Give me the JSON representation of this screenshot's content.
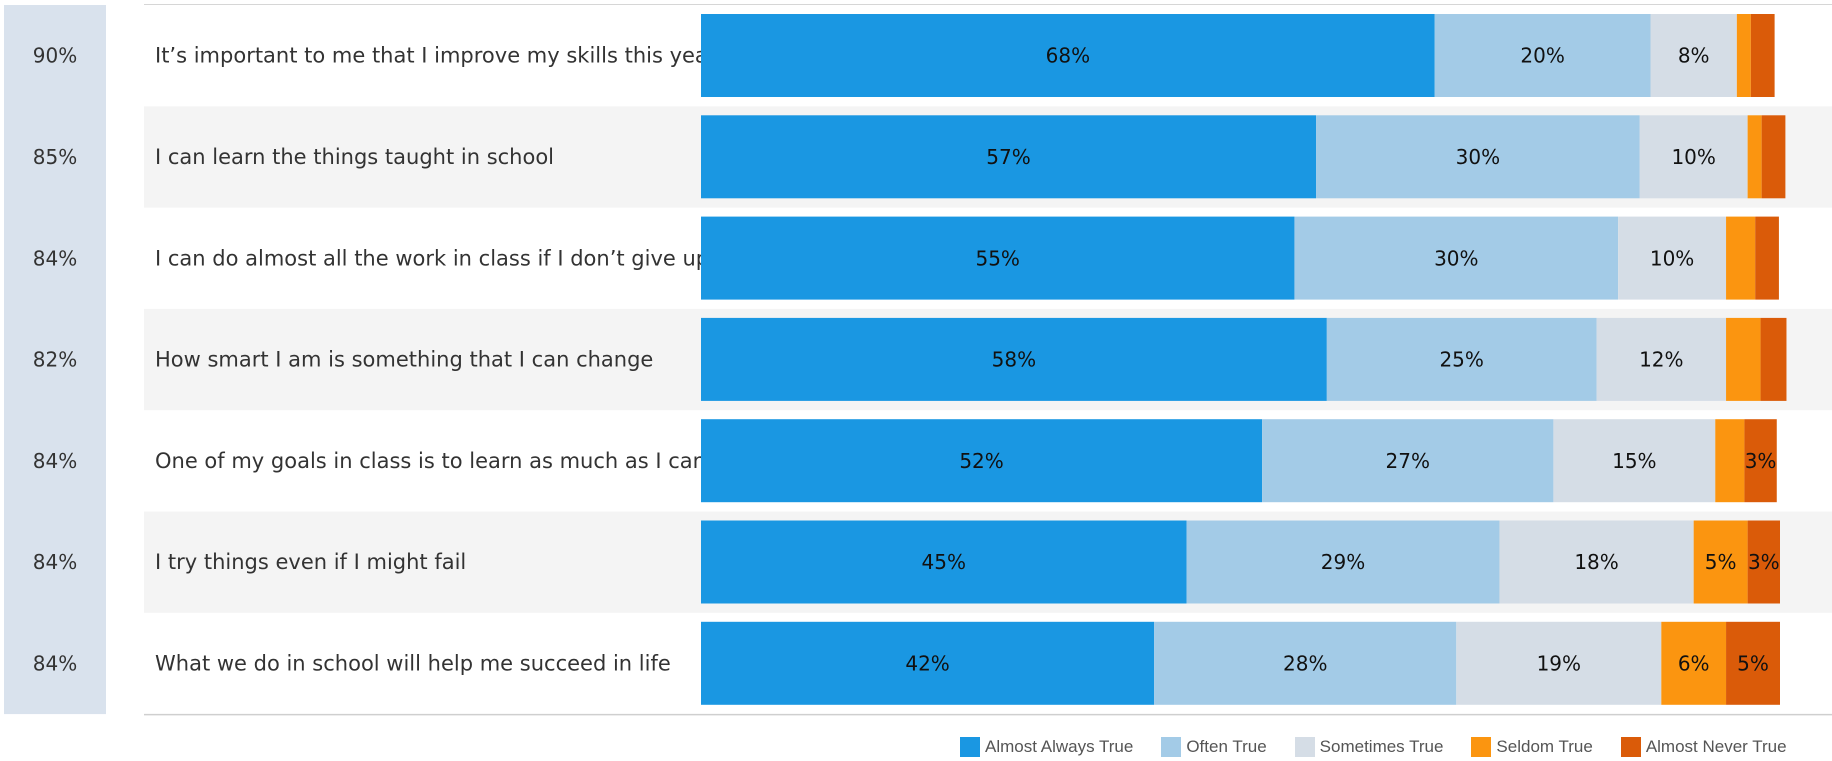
{
  "chart_data": {
    "type": "bar",
    "orientation": "horizontal",
    "stacked": true,
    "normalized": true,
    "categories": [
      "It’s important to me that I improve my skills this year",
      "I can learn the things taught in school",
      "I can do almost all the work in class if I don’t give up",
      "How smart I am is something that I can change",
      "One of my goals in class is to learn as much as I can",
      "I try things even if I might fail",
      "What we do in school will help me succeed in life"
    ],
    "favorable": [
      "90%",
      "85%",
      "84%",
      "82%",
      "84%",
      "84%",
      "84%"
    ],
    "series": [
      {
        "name": "Almost Always True",
        "color": "#1a97e2",
        "values": [
          68,
          57,
          55,
          58,
          52,
          45,
          42
        ]
      },
      {
        "name": "Often True",
        "color": "#a3cbe7",
        "values": [
          20,
          30,
          30,
          25,
          27,
          29,
          28
        ]
      },
      {
        "name": "Sometimes True",
        "color": "#d5dde6",
        "values": [
          8,
          10,
          10,
          12,
          15,
          18,
          19
        ]
      },
      {
        "name": "Seldom True",
        "color": "#fb9510",
        "values": [
          1.3,
          1.3,
          2.7,
          3.2,
          2.7,
          5,
          6
        ]
      },
      {
        "name": "Almost Never True",
        "color": "#da5b09",
        "values": [
          2.2,
          2.2,
          2.2,
          2.4,
          3,
          3,
          5
        ]
      }
    ],
    "data_labels": [
      [
        "68%",
        "20%",
        "8%",
        "",
        ""
      ],
      [
        "57%",
        "30%",
        "10%",
        "",
        ""
      ],
      [
        "55%",
        "30%",
        "10%",
        "",
        ""
      ],
      [
        "58%",
        "25%",
        "12%",
        "",
        ""
      ],
      [
        "52%",
        "27%",
        "15%",
        "",
        "3%"
      ],
      [
        "45%",
        "29%",
        "18%",
        "5%",
        "3%"
      ],
      [
        "42%",
        "28%",
        "19%",
        "6%",
        "5%"
      ]
    ],
    "xlim": [
      0,
      100
    ],
    "grid": false,
    "legend_position": "bottom-right"
  }
}
